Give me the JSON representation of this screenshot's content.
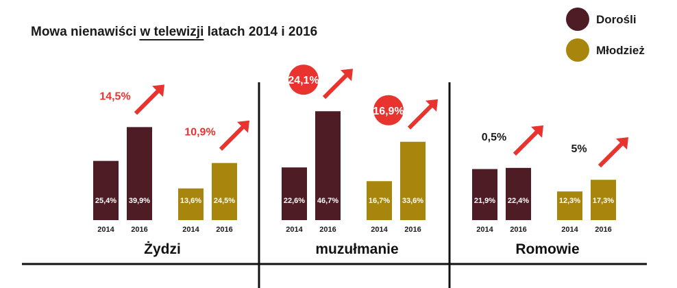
{
  "chart_data": {
    "type": "bar",
    "title_parts": [
      "Mowa nienawiści ",
      "w telewizji",
      " latach 2014 i 2016"
    ],
    "years": [
      "2014",
      "2016"
    ],
    "ylim": [
      0,
      50
    ],
    "legend": [
      {
        "name": "Dorośli",
        "color": "#4e1c24"
      },
      {
        "name": "Młodzież",
        "color": "#a8860d"
      }
    ],
    "groups": [
      {
        "label": "Żydzi",
        "series": [
          {
            "name": "Dorośli",
            "values": [
              25.4,
              39.9
            ],
            "value_labels": [
              "25,4%",
              "39,9%"
            ],
            "change": "14,5%",
            "change_style": "plain-red"
          },
          {
            "name": "Młodzież",
            "values": [
              13.6,
              24.5
            ],
            "value_labels": [
              "13,6%",
              "24,5%"
            ],
            "change": "10,9%",
            "change_style": "plain-red"
          }
        ]
      },
      {
        "label": "muzułmanie",
        "series": [
          {
            "name": "Dorośli",
            "values": [
              22.6,
              46.7
            ],
            "value_labels": [
              "22,6%",
              "46,7%"
            ],
            "change": "24,1%",
            "change_style": "circle"
          },
          {
            "name": "Młodzież",
            "values": [
              16.7,
              33.6
            ],
            "value_labels": [
              "16,7%",
              "33,6%"
            ],
            "change": "16,9%",
            "change_style": "circle"
          }
        ]
      },
      {
        "label": "Romowie",
        "series": [
          {
            "name": "Dorośli",
            "values": [
              21.9,
              22.4
            ],
            "value_labels": [
              "21,9%",
              "22,4%"
            ],
            "change": "0,5%",
            "change_style": "plain-dark"
          },
          {
            "name": "Młodzież",
            "values": [
              12.3,
              17.3
            ],
            "value_labels": [
              "12,3%",
              "17,3%"
            ],
            "change": "5%",
            "change_style": "plain-dark"
          }
        ]
      }
    ]
  },
  "colors": {
    "adults": "#4e1c24",
    "youth": "#a8860d",
    "accent_red": "#e8332e",
    "text": "#1a1a1a"
  }
}
